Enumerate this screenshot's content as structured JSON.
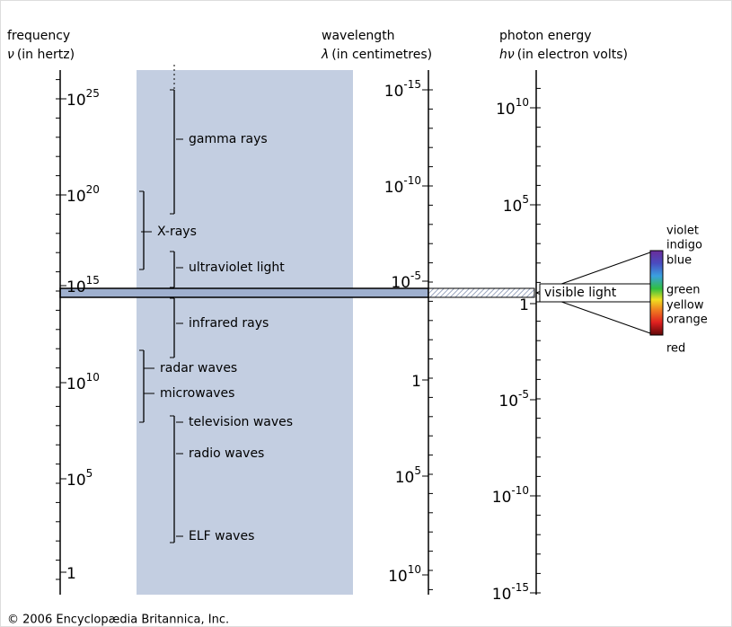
{
  "axes": [
    {
      "title": "frequency",
      "symbol": "ν",
      "unit": "(in hertz)",
      "ticks": [
        {
          "base": "10",
          "exp": "25"
        },
        {
          "base": "10",
          "exp": "20"
        },
        {
          "base": "10",
          "exp": "15"
        },
        {
          "base": "10",
          "exp": "10"
        },
        {
          "base": "10",
          "exp": "5"
        },
        {
          "base": "1"
        }
      ]
    },
    {
      "title": "wavelength",
      "symbol": "λ",
      "unit": "(in centimetres)",
      "ticks": [
        {
          "base": "10",
          "exp": "-15"
        },
        {
          "base": "10",
          "exp": "-10"
        },
        {
          "base": "10",
          "exp": "-5"
        },
        {
          "base": "1"
        },
        {
          "base": "10",
          "exp": "5"
        },
        {
          "base": "10",
          "exp": "10"
        }
      ]
    },
    {
      "title": "photon energy",
      "symbol": "hν",
      "unit": "(in electron volts)",
      "ticks": [
        {
          "base": "10",
          "exp": "10"
        },
        {
          "base": "10",
          "exp": "5"
        },
        {
          "base": "1"
        },
        {
          "base": "10",
          "exp": "-5"
        },
        {
          "base": "10",
          "exp": "-10"
        },
        {
          "base": "10",
          "exp": "-15"
        }
      ]
    }
  ],
  "bands": [
    "gamma rays",
    "X-rays",
    "ultraviolet light",
    "infrared rays",
    "radar waves",
    "microwaves",
    "television waves",
    "radio waves",
    "ELF waves"
  ],
  "visible": {
    "label": "visible light",
    "colors": [
      "violet",
      "indigo",
      "blue",
      "green",
      "yellow",
      "orange",
      "red"
    ]
  },
  "footer": "© 2006 Encyclopædia Britannica, Inc."
}
